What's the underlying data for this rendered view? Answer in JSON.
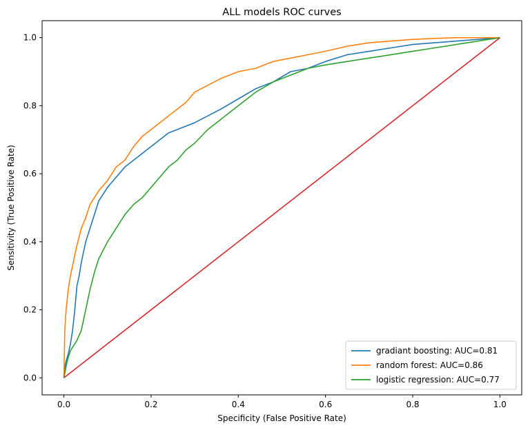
{
  "chart_data": {
    "type": "line",
    "title": "ALL models ROC curves",
    "xlabel": "Specificity (False Positive Rate)",
    "ylabel": "Sensitivity (True Positive Rate)",
    "xlim": [
      -0.05,
      1.05
    ],
    "ylim": [
      -0.05,
      1.05
    ],
    "xticks": [
      0.0,
      0.2,
      0.4,
      0.6,
      0.8,
      1.0
    ],
    "yticks": [
      0.0,
      0.2,
      0.4,
      0.6,
      0.8,
      1.0
    ],
    "xtick_labels": [
      "0.0",
      "0.2",
      "0.4",
      "0.6",
      "0.8",
      "1.0"
    ],
    "ytick_labels": [
      "0.0",
      "0.2",
      "0.4",
      "0.6",
      "0.8",
      "1.0"
    ],
    "grid": false,
    "legend_position": "bottom-right",
    "series": [
      {
        "name": "gradiant boosting: AUC=0.81",
        "color": "#1f77b4",
        "x": [
          0.0,
          0.002,
          0.005,
          0.01,
          0.015,
          0.02,
          0.025,
          0.03,
          0.035,
          0.04,
          0.05,
          0.06,
          0.07,
          0.08,
          0.09,
          0.1,
          0.12,
          0.14,
          0.16,
          0.18,
          0.2,
          0.22,
          0.24,
          0.26,
          0.28,
          0.3,
          0.33,
          0.36,
          0.4,
          0.44,
          0.48,
          0.52,
          0.56,
          0.6,
          0.65,
          0.7,
          0.75,
          0.8,
          0.85,
          0.9,
          0.95,
          1.0
        ],
        "y": [
          0.0,
          0.03,
          0.05,
          0.07,
          0.1,
          0.14,
          0.2,
          0.27,
          0.3,
          0.34,
          0.4,
          0.44,
          0.48,
          0.52,
          0.54,
          0.56,
          0.59,
          0.62,
          0.64,
          0.66,
          0.68,
          0.7,
          0.72,
          0.73,
          0.74,
          0.75,
          0.77,
          0.79,
          0.82,
          0.85,
          0.87,
          0.9,
          0.91,
          0.93,
          0.95,
          0.96,
          0.97,
          0.98,
          0.985,
          0.99,
          0.995,
          1.0
        ]
      },
      {
        "name": "random forest: AUC=0.86",
        "color": "#ff7f0e",
        "x": [
          0.0,
          0.002,
          0.005,
          0.01,
          0.015,
          0.02,
          0.03,
          0.04,
          0.05,
          0.06,
          0.07,
          0.08,
          0.1,
          0.12,
          0.14,
          0.16,
          0.18,
          0.2,
          0.22,
          0.24,
          0.26,
          0.28,
          0.3,
          0.33,
          0.36,
          0.4,
          0.44,
          0.48,
          0.52,
          0.56,
          0.6,
          0.65,
          0.7,
          0.75,
          0.8,
          0.85,
          0.9,
          0.95,
          1.0
        ],
        "y": [
          0.0,
          0.14,
          0.2,
          0.26,
          0.3,
          0.33,
          0.39,
          0.44,
          0.47,
          0.51,
          0.53,
          0.55,
          0.58,
          0.62,
          0.64,
          0.68,
          0.71,
          0.73,
          0.75,
          0.77,
          0.79,
          0.81,
          0.84,
          0.86,
          0.88,
          0.9,
          0.91,
          0.93,
          0.94,
          0.95,
          0.96,
          0.975,
          0.985,
          0.99,
          0.995,
          0.998,
          1.0,
          1.0,
          1.0
        ]
      },
      {
        "name": "logistic regression: AUC=0.77",
        "color": "#2ca02c",
        "x": [
          0.0,
          0.003,
          0.006,
          0.01,
          0.015,
          0.02,
          0.03,
          0.04,
          0.05,
          0.06,
          0.07,
          0.08,
          0.1,
          0.12,
          0.14,
          0.16,
          0.18,
          0.2,
          0.22,
          0.24,
          0.26,
          0.28,
          0.3,
          0.33,
          0.36,
          0.4,
          0.44,
          0.48,
          0.52,
          0.56,
          0.6,
          0.65,
          0.7,
          0.75,
          0.8,
          0.85,
          0.9,
          0.95,
          1.0
        ],
        "y": [
          0.0,
          0.02,
          0.04,
          0.06,
          0.08,
          0.09,
          0.11,
          0.14,
          0.2,
          0.26,
          0.31,
          0.35,
          0.4,
          0.44,
          0.48,
          0.51,
          0.53,
          0.56,
          0.59,
          0.62,
          0.64,
          0.67,
          0.69,
          0.73,
          0.76,
          0.8,
          0.84,
          0.87,
          0.89,
          0.91,
          0.92,
          0.93,
          0.94,
          0.95,
          0.96,
          0.97,
          0.98,
          0.99,
          1.0
        ]
      },
      {
        "name": "",
        "color": "#d62728",
        "x": [
          0.0,
          1.0
        ],
        "y": [
          0.0,
          1.0
        ]
      }
    ]
  }
}
